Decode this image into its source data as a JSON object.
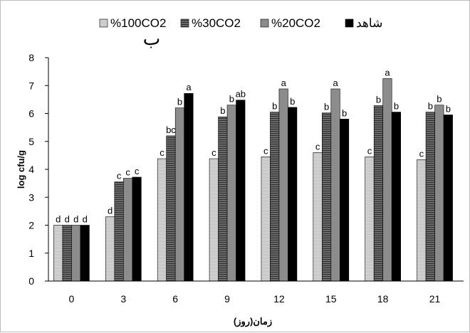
{
  "chart_data": {
    "type": "bar",
    "panel_label": "ب",
    "xlabel": "زمان(روز)",
    "ylabel": "log cfu/g",
    "ylim": [
      0,
      8
    ],
    "yticks": [
      "0",
      "1",
      "2",
      "3",
      "4",
      "5",
      "6",
      "7",
      "8"
    ],
    "categories": [
      "0",
      "3",
      "6",
      "9",
      "12",
      "15",
      "18",
      "21"
    ],
    "legend_position": "top",
    "series": [
      {
        "name": "%100CO2",
        "color": "#d0d0d0",
        "pattern": "light-hatch",
        "values": [
          2.0,
          2.3,
          4.38,
          4.38,
          4.45,
          4.6,
          4.45,
          4.35
        ],
        "labels": [
          "d",
          "d",
          "c",
          "c",
          "c",
          "c",
          "c",
          "c"
        ]
      },
      {
        "name": "%30CO2",
        "color": "#555555",
        "pattern": "horizontal-stripes",
        "values": [
          2.0,
          3.55,
          5.2,
          5.88,
          6.05,
          6.02,
          6.28,
          6.05
        ],
        "labels": [
          "d",
          "c",
          "bc",
          "b",
          "b",
          "b",
          "b",
          "b"
        ]
      },
      {
        "name": "%20CO2",
        "color": "#8c8c8c",
        "pattern": "solid",
        "values": [
          2.0,
          3.68,
          6.2,
          6.3,
          6.88,
          6.88,
          7.25,
          6.3
        ],
        "labels": [
          "d",
          "c",
          "b",
          "b",
          "a",
          "a",
          "a",
          "b"
        ]
      },
      {
        "name": "شاهد",
        "color": "#000000",
        "pattern": "solid",
        "values": [
          2.0,
          3.72,
          6.72,
          6.48,
          6.22,
          5.8,
          6.05,
          5.95
        ],
        "labels": [
          "d",
          "c",
          "a",
          "ab",
          "b",
          "b",
          "b",
          "b"
        ]
      }
    ]
  }
}
